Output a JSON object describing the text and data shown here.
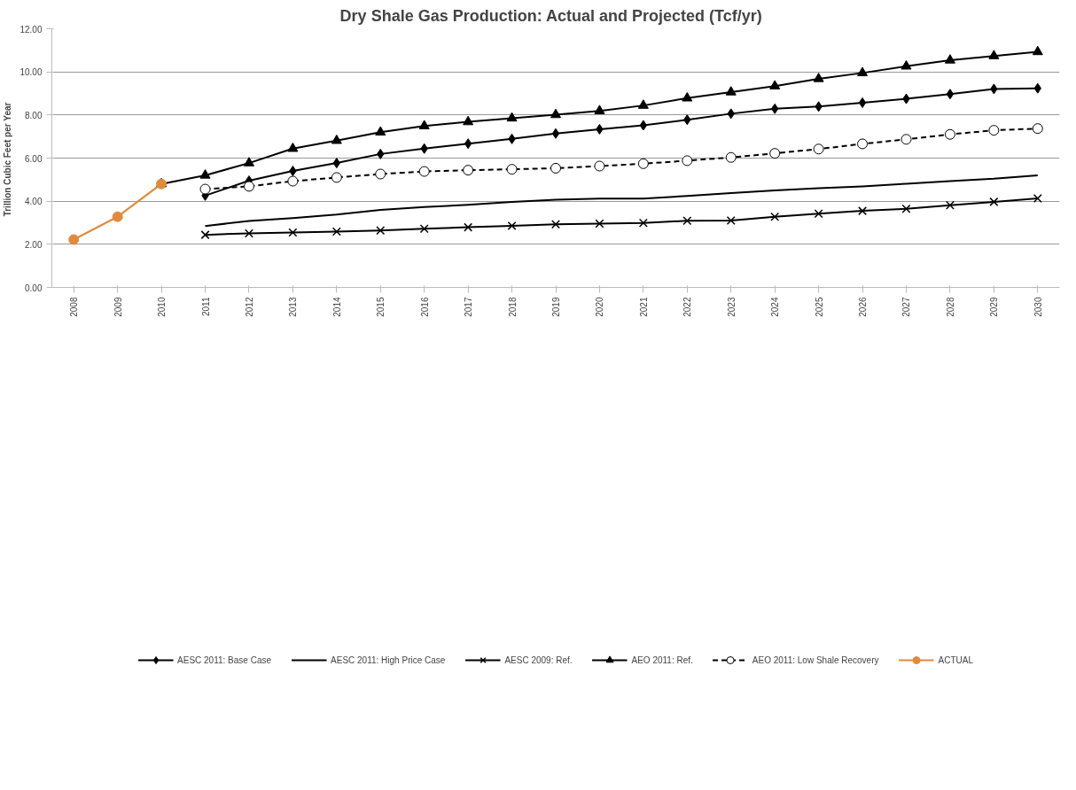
{
  "chart_data": {
    "type": "line",
    "title": "Dry Shale Gas Production:  Actual and Projected  (Tcf/yr)",
    "ylabel": "Trillion  Cubic Feet per Year",
    "categories": [
      "2008",
      "2009",
      "2010",
      "2011",
      "2012",
      "2013",
      "2014",
      "2015",
      "2016",
      "2017",
      "2018",
      "2019",
      "2020",
      "2021",
      "2022",
      "2023",
      "2024",
      "2025",
      "2026",
      "2027",
      "2028",
      "2029",
      "2030"
    ],
    "ylim": [
      0,
      12
    ],
    "yticks": [
      {
        "value": 0,
        "label": "0.00"
      },
      {
        "value": 2,
        "label": "2.00"
      },
      {
        "value": 4,
        "label": "4.00"
      },
      {
        "value": 6,
        "label": "6.00"
      },
      {
        "value": 8,
        "label": "8.00"
      },
      {
        "value": 10,
        "label": "10.00"
      },
      {
        "value": 12,
        "label": "12.00"
      }
    ],
    "grid": "y",
    "legend": "bottom",
    "series": [
      {
        "name": "AESC 2011: Base Case",
        "color": "#000000",
        "marker": "diamond",
        "line_style": "solid",
        "values": [
          null,
          null,
          null,
          4.26,
          4.95,
          5.4,
          5.77,
          6.19,
          6.44,
          6.67,
          6.89,
          7.14,
          7.34,
          7.52,
          7.78,
          8.06,
          8.29,
          8.39,
          8.57,
          8.75,
          8.97,
          9.21,
          9.24
        ]
      },
      {
        "name": "AESC 2011: High Price Case",
        "color": "#000000",
        "marker": "none",
        "line_style": "solid",
        "values": [
          null,
          null,
          null,
          2.85,
          3.08,
          3.22,
          3.38,
          3.6,
          3.73,
          3.83,
          3.97,
          4.07,
          4.12,
          4.12,
          4.24,
          4.38,
          4.5,
          4.6,
          4.69,
          4.81,
          4.93,
          5.04,
          5.2
        ]
      },
      {
        "name": "AESC 2009: Ref.",
        "color": "#000000",
        "marker": "cross",
        "line_style": "solid",
        "values": [
          null,
          null,
          null,
          2.44,
          2.51,
          2.55,
          2.59,
          2.64,
          2.72,
          2.79,
          2.86,
          2.93,
          2.96,
          2.99,
          3.09,
          3.1,
          3.28,
          3.42,
          3.55,
          3.65,
          3.81,
          3.97,
          4.13
        ]
      },
      {
        "name": "AEO 2011: Ref.",
        "color": "#000000",
        "marker": "triangle",
        "line_style": "solid",
        "values": [
          null,
          null,
          4.8,
          5.2,
          5.77,
          6.44,
          6.81,
          7.2,
          7.49,
          7.68,
          7.85,
          8.01,
          8.19,
          8.44,
          8.78,
          9.06,
          9.34,
          9.68,
          9.95,
          10.26,
          10.54,
          10.74,
          10.93
        ]
      },
      {
        "name": "AEO 2011: Low Shale Recovery",
        "color": "#000000",
        "marker": "circle",
        "line_style": "dashed",
        "values": [
          null,
          null,
          null,
          4.56,
          4.69,
          4.93,
          5.1,
          5.26,
          5.38,
          5.44,
          5.48,
          5.53,
          5.63,
          5.74,
          5.88,
          6.03,
          6.22,
          6.42,
          6.66,
          6.87,
          7.1,
          7.29,
          7.37
        ]
      },
      {
        "name": "ACTUAL",
        "color": "#e08a3c",
        "marker": "circle",
        "line_style": "solid",
        "values": [
          2.22,
          3.28,
          4.8,
          null,
          null,
          null,
          null,
          null,
          null,
          null,
          null,
          null,
          null,
          null,
          null,
          null,
          null,
          null,
          null,
          null,
          null,
          null,
          null
        ]
      }
    ]
  }
}
